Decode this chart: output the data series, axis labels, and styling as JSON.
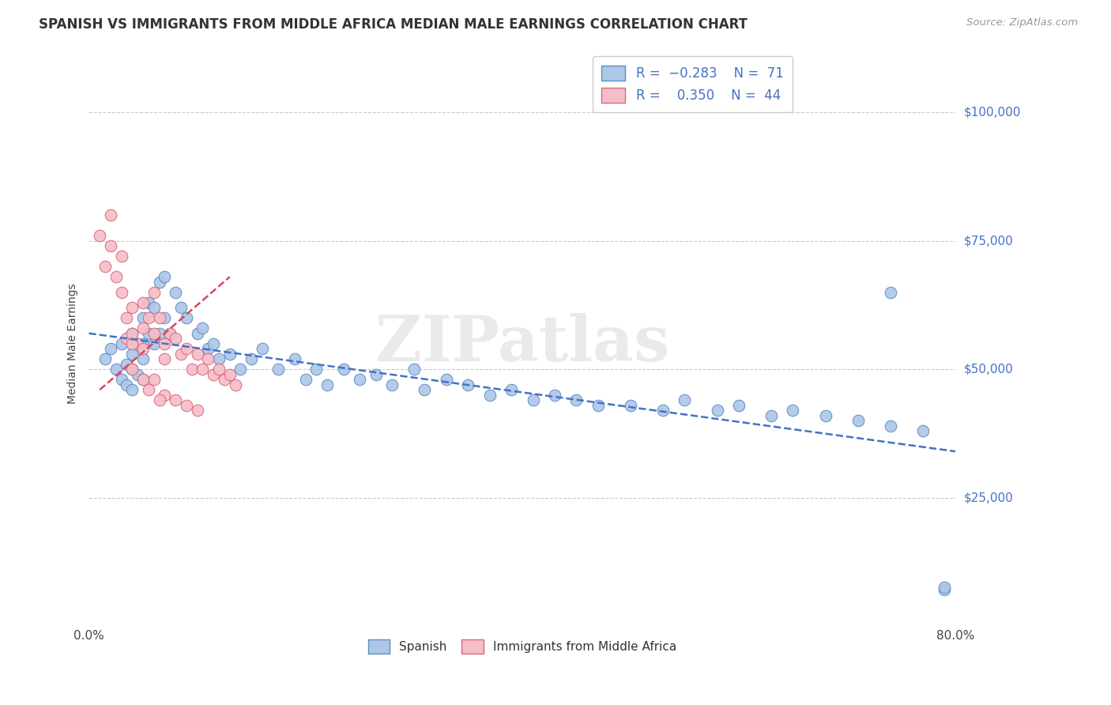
{
  "title": "SPANISH VS IMMIGRANTS FROM MIDDLE AFRICA MEDIAN MALE EARNINGS CORRELATION CHART",
  "source": "Source: ZipAtlas.com",
  "ylabel": "Median Male Earnings",
  "x_min": 0.0,
  "x_max": 0.8,
  "y_min": 0,
  "y_max": 110000,
  "y_ticks": [
    25000,
    50000,
    75000,
    100000
  ],
  "y_tick_labels": [
    "$25,000",
    "$50,000",
    "$75,000",
    "$100,000"
  ],
  "x_ticks": [
    0.0,
    0.8
  ],
  "x_tick_labels": [
    "0.0%",
    "80.0%"
  ],
  "spanish_color": "#aec6e8",
  "immigrants_color": "#f5bdc8",
  "spanish_edge": "#5b8ec4",
  "immigrants_edge": "#d9687a",
  "trend_blue": "#4472c4",
  "trend_pink": "#d9485a",
  "background_color": "#ffffff",
  "grid_color": "#c8c8d8",
  "watermark": "ZIPatlas",
  "spanish_x": [
    0.015,
    0.02,
    0.025,
    0.03,
    0.03,
    0.035,
    0.035,
    0.04,
    0.04,
    0.04,
    0.04,
    0.045,
    0.045,
    0.05,
    0.05,
    0.05,
    0.05,
    0.055,
    0.055,
    0.06,
    0.06,
    0.065,
    0.065,
    0.07,
    0.07,
    0.075,
    0.08,
    0.085,
    0.09,
    0.1,
    0.105,
    0.11,
    0.115,
    0.12,
    0.13,
    0.14,
    0.15,
    0.16,
    0.175,
    0.19,
    0.2,
    0.21,
    0.22,
    0.235,
    0.25,
    0.265,
    0.28,
    0.3,
    0.31,
    0.33,
    0.35,
    0.37,
    0.39,
    0.41,
    0.43,
    0.45,
    0.47,
    0.5,
    0.53,
    0.55,
    0.58,
    0.6,
    0.63,
    0.65,
    0.68,
    0.71,
    0.74,
    0.74,
    0.77,
    0.79,
    0.79
  ],
  "spanish_y": [
    52000,
    54000,
    50000,
    55000,
    48000,
    51000,
    47000,
    57000,
    53000,
    50000,
    46000,
    55000,
    49000,
    60000,
    55000,
    52000,
    48000,
    63000,
    57000,
    62000,
    55000,
    67000,
    57000,
    68000,
    60000,
    57000,
    65000,
    62000,
    60000,
    57000,
    58000,
    54000,
    55000,
    52000,
    53000,
    50000,
    52000,
    54000,
    50000,
    52000,
    48000,
    50000,
    47000,
    50000,
    48000,
    49000,
    47000,
    50000,
    46000,
    48000,
    47000,
    45000,
    46000,
    44000,
    45000,
    44000,
    43000,
    43000,
    42000,
    44000,
    42000,
    43000,
    41000,
    42000,
    41000,
    40000,
    39000,
    65000,
    38000,
    7000,
    7500
  ],
  "immigrants_x": [
    0.01,
    0.015,
    0.02,
    0.02,
    0.025,
    0.03,
    0.03,
    0.035,
    0.035,
    0.04,
    0.04,
    0.045,
    0.05,
    0.05,
    0.05,
    0.055,
    0.06,
    0.06,
    0.065,
    0.07,
    0.07,
    0.075,
    0.08,
    0.085,
    0.09,
    0.095,
    0.1,
    0.105,
    0.11,
    0.115,
    0.12,
    0.125,
    0.13,
    0.135,
    0.04,
    0.06,
    0.07,
    0.08,
    0.09,
    0.1,
    0.04,
    0.05,
    0.055,
    0.065
  ],
  "immigrants_y": [
    76000,
    70000,
    80000,
    74000,
    68000,
    72000,
    65000,
    60000,
    56000,
    62000,
    57000,
    55000,
    63000,
    58000,
    54000,
    60000,
    65000,
    57000,
    60000,
    55000,
    52000,
    57000,
    56000,
    53000,
    54000,
    50000,
    53000,
    50000,
    52000,
    49000,
    50000,
    48000,
    49000,
    47000,
    50000,
    48000,
    45000,
    44000,
    43000,
    42000,
    55000,
    48000,
    46000,
    44000
  ],
  "trend_blue_x0": 0.0,
  "trend_blue_x1": 0.8,
  "trend_blue_y0": 57000,
  "trend_blue_y1": 34000,
  "trend_pink_x0": 0.01,
  "trend_pink_x1": 0.13,
  "trend_pink_y0": 46000,
  "trend_pink_y1": 68000
}
